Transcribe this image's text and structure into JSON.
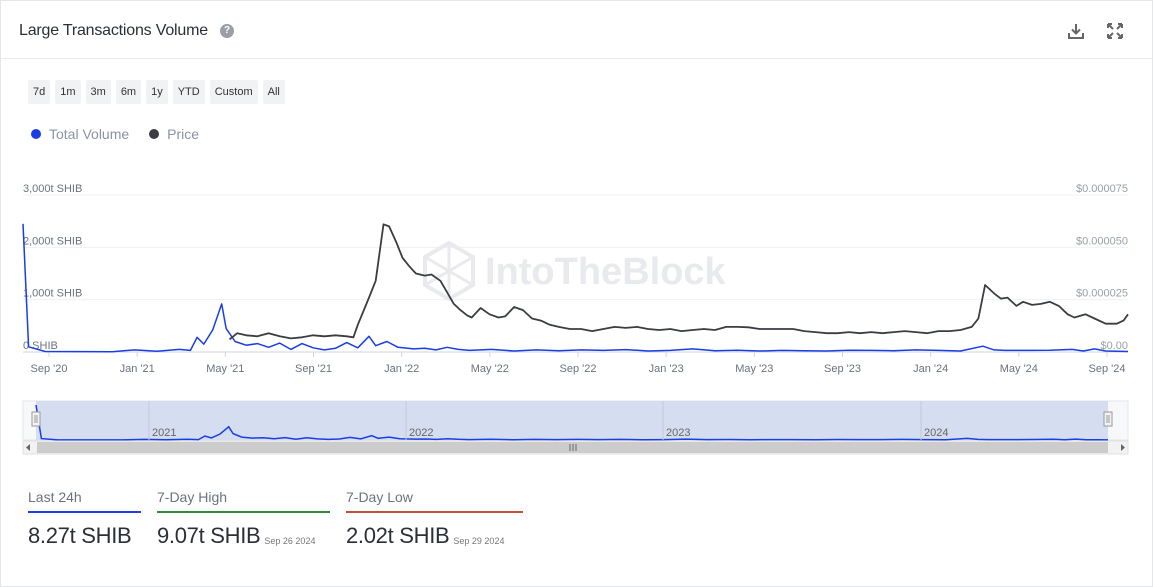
{
  "header": {
    "title": "Large Transactions Volume",
    "help_icon": "help-circle-icon",
    "download_icon": "download-icon",
    "expand_icon": "expand-icon"
  },
  "range_buttons": [
    "7d",
    "1m",
    "3m",
    "6m",
    "1y",
    "YTD",
    "Custom",
    "All"
  ],
  "legend": [
    {
      "label": "Total Volume",
      "color": "#1a3de6"
    },
    {
      "label": "Price",
      "color": "#3a3d42"
    }
  ],
  "watermark": "IntoTheBlock",
  "chart_data": {
    "type": "line",
    "x_ticks": [
      "Sep '20",
      "Jan '21",
      "May '21",
      "Sep '21",
      "Jan '22",
      "May '22",
      "Sep '22",
      "Jan '23",
      "May '23",
      "Sep '23",
      "Jan '24",
      "May '24",
      "Sep '24"
    ],
    "y_left_ticks": [
      "0 SHIB",
      "1,000t SHIB",
      "2,000t SHIB",
      "3,000t SHIB"
    ],
    "y_right_ticks": [
      "$0.00",
      "$0.000025",
      "$0.000050",
      "$0.000075"
    ],
    "y_left_range": [
      0,
      3000
    ],
    "y_right_range": [
      0,
      7.5e-05
    ],
    "x_range": [
      0,
      49.5
    ],
    "navigator_labels": [
      "2021",
      "2022",
      "2023",
      "2024"
    ],
    "series": [
      {
        "name": "Total Volume",
        "color": "#1a3de6",
        "axis": "left",
        "points": [
          [
            0,
            2450
          ],
          [
            0.25,
            100
          ],
          [
            1,
            10
          ],
          [
            4,
            5
          ],
          [
            5,
            40
          ],
          [
            6,
            15
          ],
          [
            7,
            50
          ],
          [
            7.5,
            30
          ],
          [
            7.8,
            280
          ],
          [
            8.1,
            150
          ],
          [
            8.5,
            420
          ],
          [
            8.9,
            920
          ],
          [
            9.1,
            450
          ],
          [
            9.5,
            200
          ],
          [
            10,
            130
          ],
          [
            10.5,
            160
          ],
          [
            11,
            90
          ],
          [
            11.5,
            170
          ],
          [
            12,
            50
          ],
          [
            12.5,
            160
          ],
          [
            13,
            80
          ],
          [
            13.5,
            40
          ],
          [
            14,
            70
          ],
          [
            14.5,
            180
          ],
          [
            15,
            80
          ],
          [
            15.5,
            300
          ],
          [
            15.8,
            120
          ],
          [
            16.3,
            200
          ],
          [
            16.8,
            90
          ],
          [
            17.5,
            60
          ],
          [
            18,
            70
          ],
          [
            18.5,
            40
          ],
          [
            19,
            90
          ],
          [
            19.5,
            50
          ],
          [
            20,
            30
          ],
          [
            21,
            50
          ],
          [
            22,
            20
          ],
          [
            23,
            40
          ],
          [
            24,
            25
          ],
          [
            25,
            40
          ],
          [
            26,
            30
          ],
          [
            27,
            45
          ],
          [
            28,
            20
          ],
          [
            29,
            30
          ],
          [
            30,
            60
          ],
          [
            31,
            25
          ],
          [
            32,
            35
          ],
          [
            33,
            20
          ],
          [
            34,
            30
          ],
          [
            35,
            25
          ],
          [
            36,
            20
          ],
          [
            37,
            35
          ],
          [
            38,
            30
          ],
          [
            39,
            25
          ],
          [
            40,
            40
          ],
          [
            41,
            30
          ],
          [
            42,
            20
          ],
          [
            43,
            110
          ],
          [
            43.5,
            40
          ],
          [
            44,
            30
          ],
          [
            45,
            30
          ],
          [
            46,
            35
          ],
          [
            47,
            50
          ],
          [
            47.5,
            20
          ],
          [
            48,
            60
          ],
          [
            48.5,
            20
          ],
          [
            49,
            15
          ],
          [
            49.5,
            10
          ]
        ]
      },
      {
        "name": "Price",
        "color": "#3a3d42",
        "axis": "right",
        "points": [
          [
            9.25,
            6e-06
          ],
          [
            9.6,
            9e-06
          ],
          [
            10,
            8e-06
          ],
          [
            10.5,
            7.5e-06
          ],
          [
            11,
            9e-06
          ],
          [
            11.5,
            7.5e-06
          ],
          [
            12,
            6.5e-06
          ],
          [
            12.5,
            7e-06
          ],
          [
            13,
            8e-06
          ],
          [
            13.5,
            7.5e-06
          ],
          [
            14,
            8e-06
          ],
          [
            14.5,
            7.5e-06
          ],
          [
            14.8,
            7e-06
          ],
          [
            15,
            1.3e-05
          ],
          [
            15.5,
            2.6e-05
          ],
          [
            15.8,
            3.4e-05
          ],
          [
            16.15,
            6.1e-05
          ],
          [
            16.4,
            6e-05
          ],
          [
            16.7,
            5.3e-05
          ],
          [
            17,
            4.5e-05
          ],
          [
            17.3,
            4.1e-05
          ],
          [
            17.6,
            3.75e-05
          ],
          [
            18,
            3.65e-05
          ],
          [
            18.3,
            3.7e-05
          ],
          [
            18.7,
            3.4e-05
          ],
          [
            19,
            2.85e-05
          ],
          [
            19.3,
            2.3e-05
          ],
          [
            19.6,
            2e-05
          ],
          [
            19.9,
            1.75e-05
          ],
          [
            20.1,
            1.65e-05
          ],
          [
            20.5,
            2.1e-05
          ],
          [
            20.9,
            1.8e-05
          ],
          [
            21.3,
            1.65e-05
          ],
          [
            21.6,
            1.7e-05
          ],
          [
            22,
            2.15e-05
          ],
          [
            22.4,
            2e-05
          ],
          [
            22.8,
            1.6e-05
          ],
          [
            23.2,
            1.5e-05
          ],
          [
            23.6,
            1.3e-05
          ],
          [
            24,
            1.2e-05
          ],
          [
            24.5,
            1.1e-05
          ],
          [
            25,
            1.1e-05
          ],
          [
            25.5,
            1e-05
          ],
          [
            26,
            1.1e-05
          ],
          [
            26.5,
            1.2e-05
          ],
          [
            27,
            1.15e-05
          ],
          [
            27.5,
            1.2e-05
          ],
          [
            28,
            1.1e-05
          ],
          [
            28.5,
            1.05e-05
          ],
          [
            29,
            1.1e-05
          ],
          [
            29.5,
            1e-05
          ],
          [
            30,
            1.05e-05
          ],
          [
            30.5,
            1.1e-05
          ],
          [
            31,
            1.05e-05
          ],
          [
            31.5,
            1.2e-05
          ],
          [
            32,
            1.2e-05
          ],
          [
            32.5,
            1.18e-05
          ],
          [
            33,
            1.1e-05
          ],
          [
            33.5,
            1.1e-05
          ],
          [
            34,
            1.1e-05
          ],
          [
            34.5,
            1.1e-05
          ],
          [
            35,
            1e-05
          ],
          [
            35.5,
            9.5e-06
          ],
          [
            36,
            9e-06
          ],
          [
            36.5,
            9e-06
          ],
          [
            37,
            9.5e-06
          ],
          [
            37.5,
            9e-06
          ],
          [
            38,
            9.5e-06
          ],
          [
            38.5,
            9e-06
          ],
          [
            39,
            9.5e-06
          ],
          [
            39.5,
            1e-05
          ],
          [
            40,
            9.5e-06
          ],
          [
            40.5,
            9e-06
          ],
          [
            41,
            1e-05
          ],
          [
            41.5,
            1e-05
          ],
          [
            42,
            1.05e-05
          ],
          [
            42.5,
            1.2e-05
          ],
          [
            42.8,
            1.6e-05
          ],
          [
            43.1,
            3.2e-05
          ],
          [
            43.5,
            2.8e-05
          ],
          [
            43.8,
            2.55e-05
          ],
          [
            44.1,
            2.6e-05
          ],
          [
            44.5,
            2.2e-05
          ],
          [
            44.8,
            2.4e-05
          ],
          [
            45.2,
            2.25e-05
          ],
          [
            45.6,
            2.3e-05
          ],
          [
            46,
            2.4e-05
          ],
          [
            46.4,
            2.2e-05
          ],
          [
            46.8,
            1.8e-05
          ],
          [
            47.1,
            1.65e-05
          ],
          [
            47.6,
            1.8e-05
          ],
          [
            48,
            1.6e-05
          ],
          [
            48.5,
            1.35e-05
          ],
          [
            49,
            1.35e-05
          ],
          [
            49.3,
            1.5e-05
          ],
          [
            49.5,
            1.8e-05
          ]
        ]
      }
    ]
  },
  "stats": [
    {
      "label": "Last 24h",
      "value": "8.27t SHIB",
      "date": "",
      "color": "#1a3de6"
    },
    {
      "label": "7-Day High",
      "value": "9.07t SHIB",
      "date": "Sep 26 2024",
      "color": "#2e8b3a"
    },
    {
      "label": "7-Day Low",
      "value": "2.02t SHIB",
      "date": "Sep 29 2024",
      "color": "#c0503a"
    }
  ]
}
